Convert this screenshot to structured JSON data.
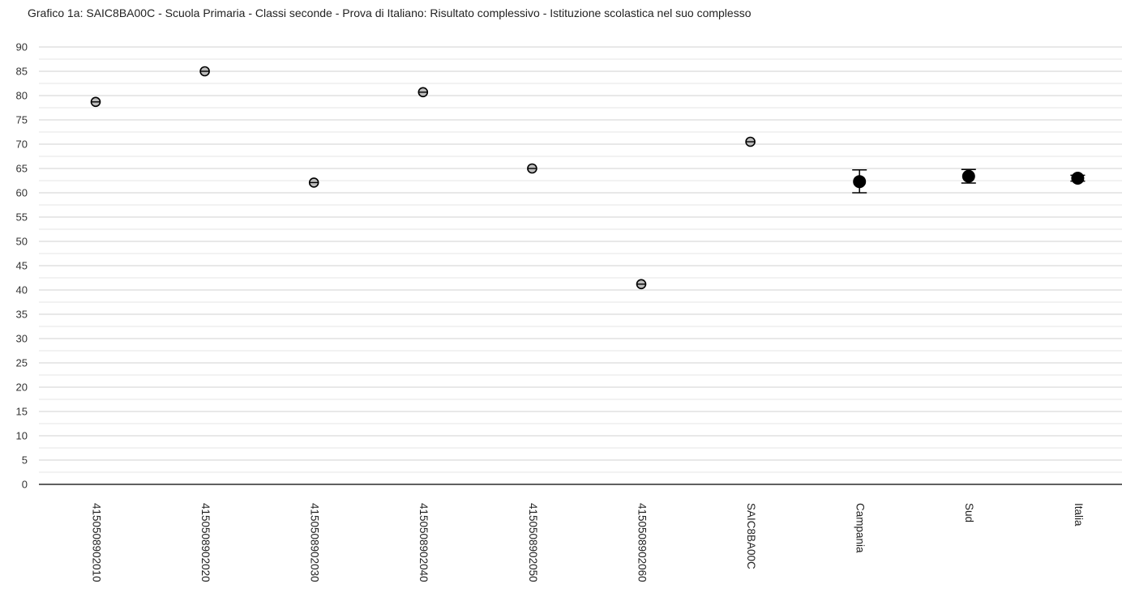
{
  "chart_data": {
    "type": "scatter",
    "title": "Grafico 1a: SAIC8BA00C - Scuola Primaria - Classi seconde - Prova di Italiano: Risultato complessivo - Istituzione scolastica nel suo complesso",
    "xlabel": "",
    "ylabel": "",
    "ylim": [
      0,
      90
    ],
    "y_ticks": [
      0,
      5,
      10,
      15,
      20,
      25,
      30,
      35,
      40,
      45,
      50,
      55,
      60,
      65,
      70,
      75,
      80,
      85,
      90
    ],
    "grid": true,
    "categories": [
      "4150508902010",
      "4150508902020",
      "4150508902030",
      "4150508902040",
      "4150508902050",
      "4150508902060",
      "SAIC8BA00C",
      "Campania",
      "Sud",
      "Italia"
    ],
    "series": [
      {
        "values": [
          78.7,
          85.0,
          62.1,
          80.7,
          65.0,
          41.2,
          70.5,
          62.3,
          63.4,
          63.0
        ],
        "error_low": [
          null,
          null,
          null,
          null,
          null,
          null,
          null,
          60.0,
          62.0,
          62.4
        ],
        "error_high": [
          null,
          null,
          null,
          null,
          null,
          null,
          null,
          64.7,
          64.8,
          63.6
        ]
      }
    ]
  },
  "colors": {
    "grid": "#d0d0d0",
    "axis": "#000000",
    "marker_open_fill": "#bdbdbd",
    "marker_stroke": "#000000",
    "marker_filled": "#000000"
  }
}
